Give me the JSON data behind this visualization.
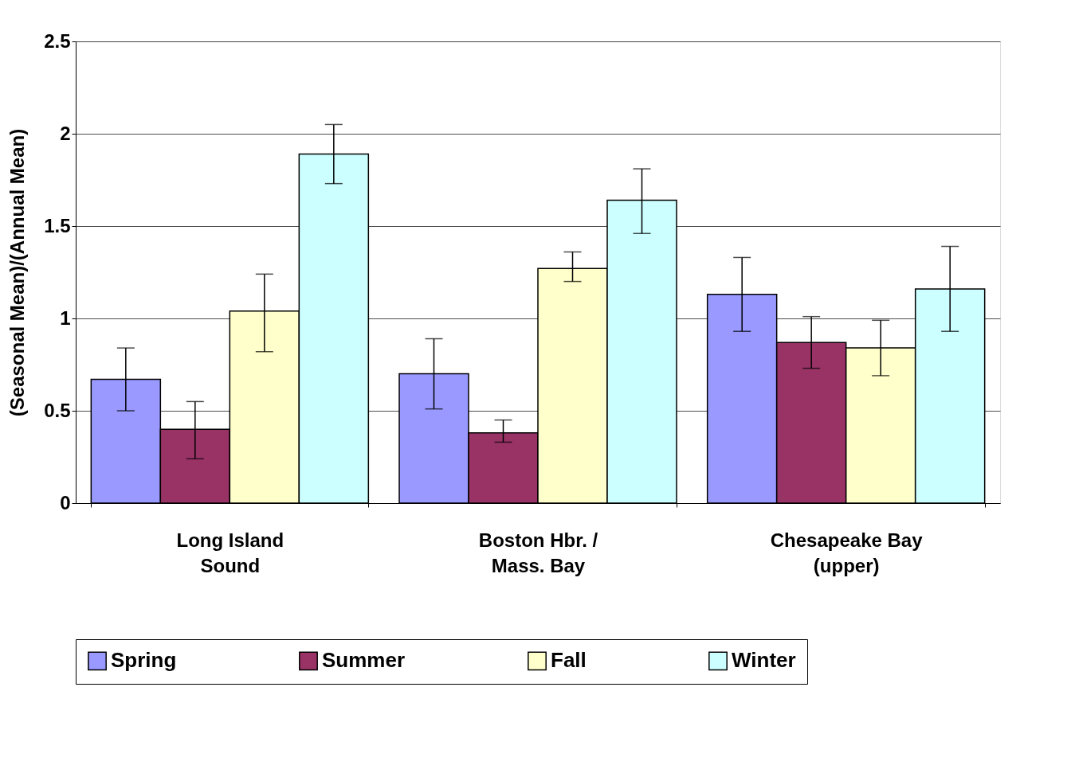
{
  "chart_data": {
    "type": "bar",
    "ylabel": "(Seasonal Mean)/(Annual Mean)",
    "categories": [
      "Long Island\nSound",
      "Boston Hbr. /\nMass. Bay",
      "Chesapeake Bay\n(upper)"
    ],
    "series": [
      {
        "name": "Spring",
        "color": "#9999ff",
        "values": [
          0.67,
          0.7,
          1.13
        ],
        "errors": [
          [
            0.5,
            0.84
          ],
          [
            0.51,
            0.89
          ],
          [
            0.93,
            1.33
          ]
        ]
      },
      {
        "name": "Summer",
        "color": "#993366",
        "values": [
          0.4,
          0.38,
          0.87
        ],
        "errors": [
          [
            0.24,
            0.55
          ],
          [
            0.33,
            0.45
          ],
          [
            0.73,
            1.01
          ]
        ]
      },
      {
        "name": "Fall",
        "color": "#ffffcc",
        "values": [
          1.04,
          1.27,
          0.84
        ],
        "errors": [
          [
            0.82,
            1.24
          ],
          [
            1.2,
            1.36
          ],
          [
            0.69,
            0.99
          ]
        ]
      },
      {
        "name": "Winter",
        "color": "#ccffff",
        "values": [
          1.89,
          1.64,
          1.16
        ],
        "errors": [
          [
            1.73,
            2.05
          ],
          [
            1.46,
            1.81
          ],
          [
            0.93,
            1.39
          ]
        ]
      }
    ],
    "ylim": [
      0,
      2.5
    ],
    "yticks": [
      0,
      0.5,
      1,
      1.5,
      2,
      2.5
    ],
    "grid": "y",
    "legend": "bottom"
  }
}
